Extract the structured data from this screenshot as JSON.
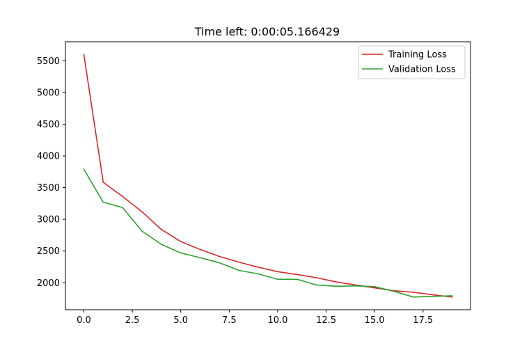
{
  "chart_data": {
    "type": "line",
    "title": "Time left: 0:00:05.166429",
    "xlabel": "",
    "ylabel": "",
    "x": [
      0,
      1,
      2,
      3,
      4,
      5,
      6,
      7,
      8,
      9,
      10,
      11,
      12,
      13,
      14,
      15,
      16,
      17,
      18,
      19
    ],
    "series": [
      {
        "name": "Training Loss",
        "color": "#d62728",
        "values": [
          5600,
          3585,
          3360,
          3120,
          2840,
          2650,
          2525,
          2415,
          2325,
          2245,
          2175,
          2130,
          2080,
          2015,
          1965,
          1920,
          1875,
          1850,
          1810,
          1775
        ]
      },
      {
        "name": "Validation Loss",
        "color": "#2ca02c",
        "values": [
          3790,
          3270,
          3185,
          2815,
          2605,
          2470,
          2395,
          2315,
          2195,
          2140,
          2055,
          2055,
          1965,
          1945,
          1950,
          1940,
          1865,
          1775,
          1785,
          1795
        ]
      }
    ],
    "xlim": [
      -0.95,
      19.95
    ],
    "ylim": [
      1575,
      5800
    ],
    "xticks": [
      0,
      2.5,
      5,
      7.5,
      10,
      12.5,
      15,
      17.5
    ],
    "xtick_labels": [
      "0.0",
      "2.5",
      "5.0",
      "7.5",
      "10.0",
      "12.5",
      "15.0",
      "17.5"
    ],
    "yticks": [
      2000,
      2500,
      3000,
      3500,
      4000,
      4500,
      5000,
      5500
    ],
    "ytick_labels": [
      "2000",
      "2500",
      "3000",
      "3500",
      "4000",
      "4500",
      "5000",
      "5500"
    ],
    "grid": false,
    "legend_position": "top-right"
  }
}
